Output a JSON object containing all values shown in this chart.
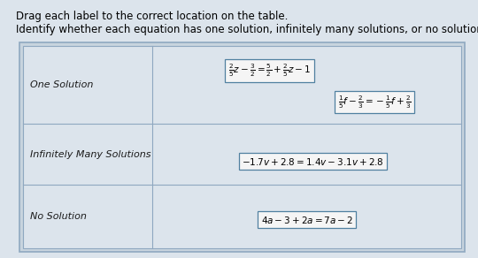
{
  "title1": "Drag each label to the correct location on the table.",
  "title2": "Identify whether each equation has one solution, infinitely many solutions, or no solution.",
  "title_fontsize": 8.5,
  "bg_color": "#dce4ec",
  "table_outer_bg": "#c8d4de",
  "table_inner_bg": "#dce4ec",
  "row_labels": [
    "One Solution",
    "Infinitely Many Solutions",
    "No Solution"
  ],
  "row_label_color": "#1a1a1a",
  "eq1_text": "$\\frac{2}{5}z - \\frac{3}{2} = \\frac{5}{2} + \\frac{2}{5}z - 1$",
  "eq2_text": "$\\frac{1}{5}f - \\frac{2}{3} = -\\frac{1}{5}f + \\frac{2}{3}$",
  "eq3_text": "$-1.7v + 2.8 = 1.4v - 3.1v + 2.8$",
  "eq4_text": "$4a - 3 + 2a = 7a - 2$",
  "eq_fontsize": 7.5,
  "label_fontsize": 8.0,
  "table_border_color": "#8fa8c0",
  "eq_border_color": "#5080a0",
  "eq_bg_color": "#f5f5f5"
}
